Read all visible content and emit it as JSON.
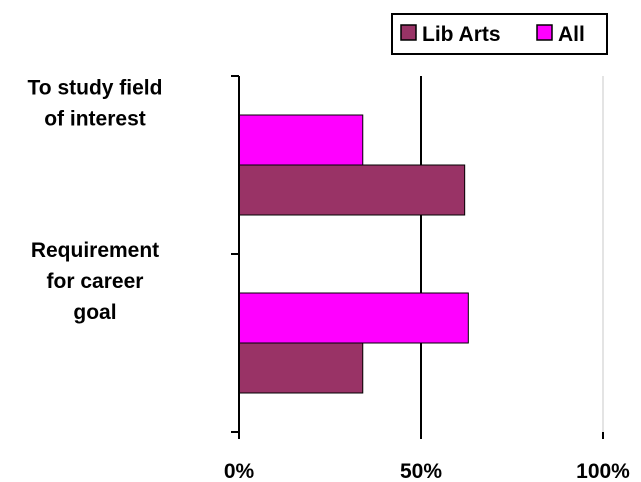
{
  "chart_data": {
    "type": "bar",
    "orientation": "horizontal",
    "categories": [
      [
        "To study field",
        "of interest"
      ],
      [
        "Requirement",
        "for career",
        "goal"
      ]
    ],
    "series": [
      {
        "name": "Lib Arts",
        "color": "#993366",
        "values": [
          62,
          34
        ]
      },
      {
        "name": "All",
        "color": "#FF00FF",
        "values": [
          34,
          63
        ]
      }
    ],
    "x_ticks": [
      "0%",
      "50%",
      "100%"
    ],
    "xlim": [
      0,
      100
    ],
    "x_unit": "percent",
    "grid": "vertical",
    "legend": {
      "position": "top-right"
    }
  }
}
